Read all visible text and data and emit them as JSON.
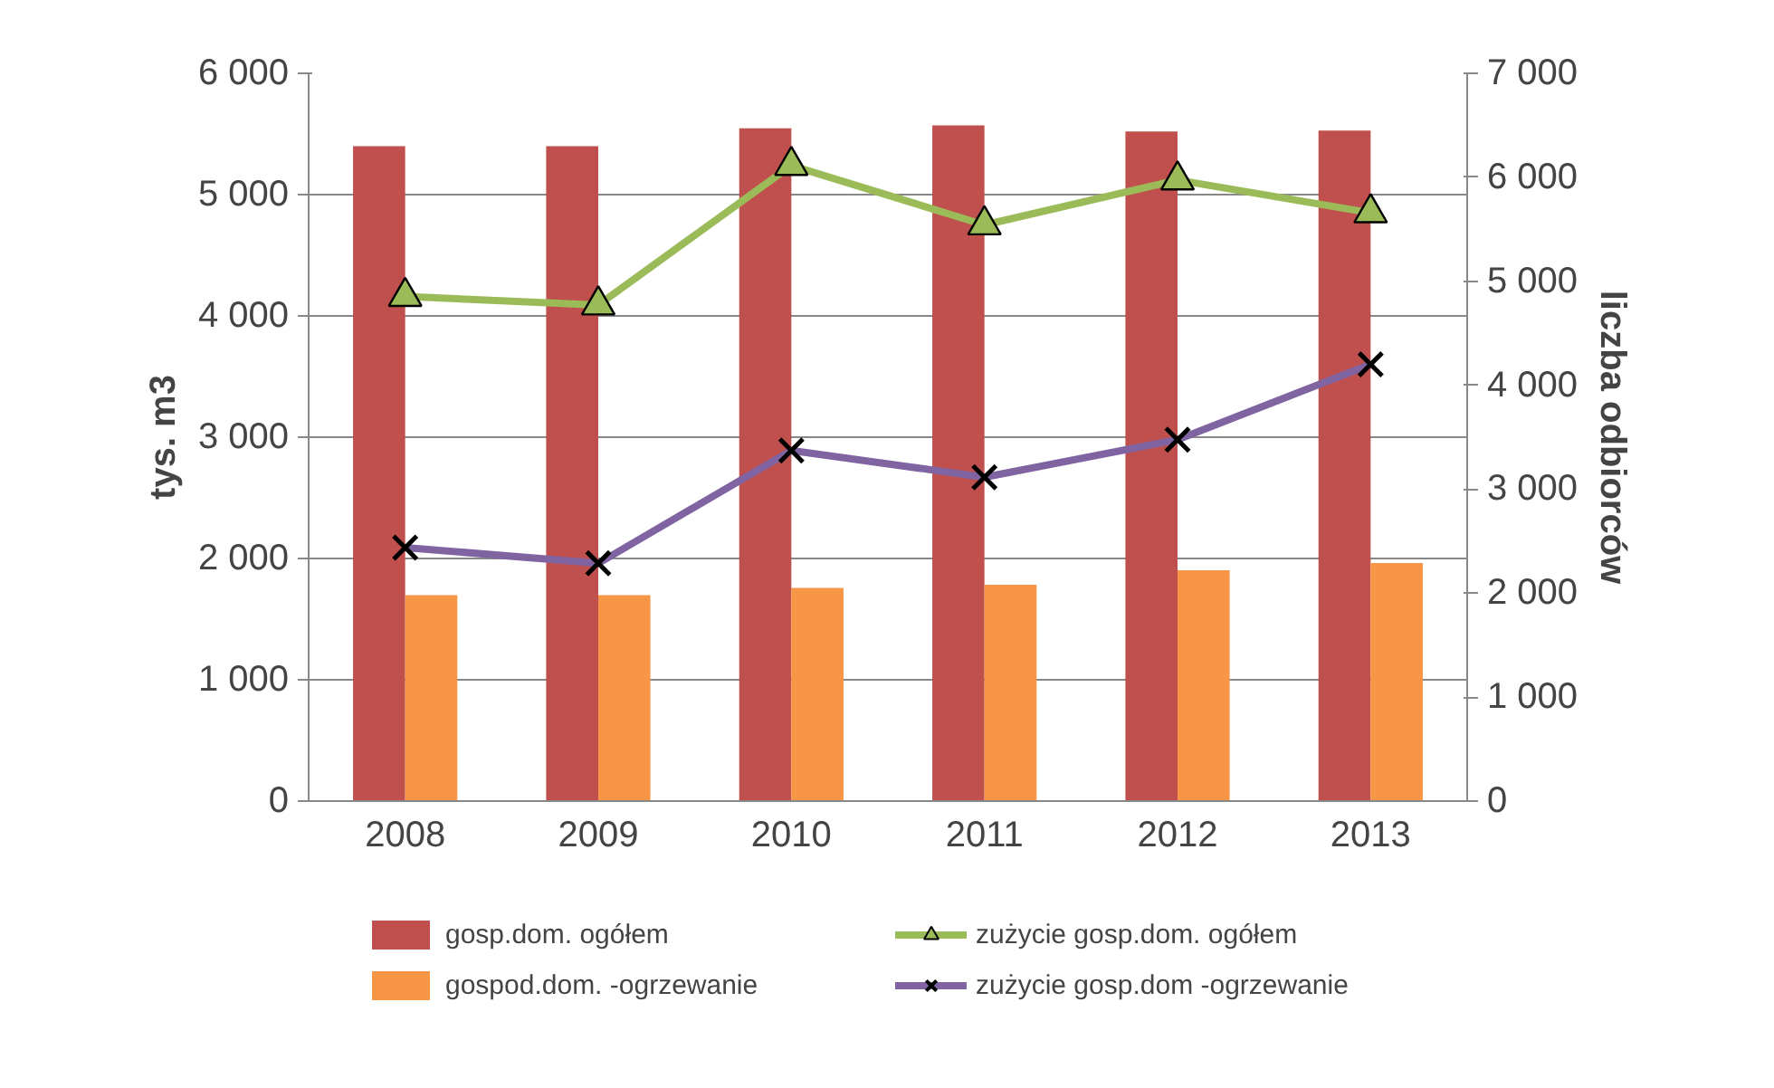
{
  "chart_data": {
    "type": "bar",
    "categories": [
      "2008",
      "2009",
      "2010",
      "2011",
      "2012",
      "2013"
    ],
    "ylabel": "tys. m3",
    "y2label": "liczba odbiorców",
    "ylim": [
      0,
      6000
    ],
    "yticks": [
      0,
      {
        "value": 1000,
        "label": "1 000"
      },
      {
        "value": 2000,
        "label": "2 000"
      },
      {
        "value": 3000,
        "label": "3 000"
      },
      {
        "value": 4000,
        "label": "4 000"
      },
      {
        "value": 5000,
        "label": "5 000"
      },
      {
        "value": 6000,
        "label": "6 000"
      }
    ],
    "y2lim": [
      0,
      7000
    ],
    "y2ticks": [
      0,
      {
        "value": 1000,
        "label": "1 000"
      },
      {
        "value": 2000,
        "label": "2 000"
      },
      {
        "value": 3000,
        "label": "3 000"
      },
      {
        "value": 4000,
        "label": "4 000"
      },
      {
        "value": 5000,
        "label": "5 000"
      },
      {
        "value": 6000,
        "label": "6 000"
      },
      {
        "value": 7000,
        "label": "7 000"
      }
    ],
    "grid": "y",
    "legend": "bottom",
    "series": [
      {
        "name": "gosp.dom. ogółem",
        "type": "bar",
        "axis": "y2",
        "color": "#c0504d",
        "values": [
          6300,
          6300,
          6470,
          6500,
          6440,
          6450
        ]
      },
      {
        "name": "gospod.dom. -ogrzewanie",
        "type": "bar",
        "axis": "y2",
        "color": "#f79646",
        "values": [
          1980,
          1980,
          2050,
          2080,
          2220,
          2290
        ]
      },
      {
        "name": "zużycie gosp.dom. ogółem",
        "type": "line",
        "axis": "y",
        "color": "#9bbb59",
        "marker": "triangle",
        "values": [
          4160,
          4090,
          5240,
          4750,
          5120,
          4850
        ]
      },
      {
        "name": "zużycie gosp.dom -ogrzewanie",
        "type": "line",
        "axis": "y",
        "color": "#8064a2",
        "marker": "cross",
        "values": [
          2090,
          1960,
          2890,
          2670,
          2980,
          3600
        ]
      }
    ]
  }
}
